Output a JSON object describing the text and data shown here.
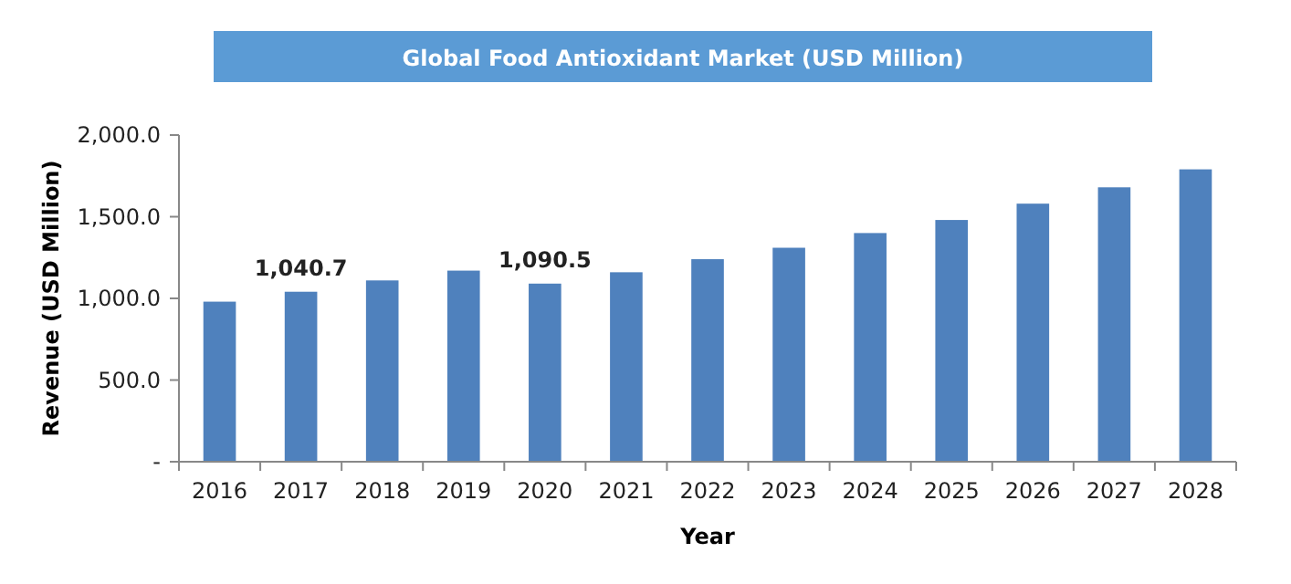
{
  "chart_data": {
    "type": "bar",
    "title": "Global Food Antioxidant Market (USD Million)",
    "xlabel": "Year",
    "ylabel": "Revenue (USD Million)",
    "categories": [
      "2016",
      "2017",
      "2018",
      "2019",
      "2020",
      "2021",
      "2022",
      "2023",
      "2024",
      "2025",
      "2026",
      "2027",
      "2028"
    ],
    "values": [
      980,
      1040.7,
      1110,
      1170,
      1090.5,
      1160,
      1240,
      1310,
      1400,
      1480,
      1580,
      1680,
      1790
    ],
    "value_labels": [
      null,
      "1,040.7",
      null,
      null,
      "1,090.5",
      null,
      null,
      null,
      null,
      null,
      null,
      null,
      null
    ],
    "color": "#4f81bd",
    "ylim": [
      0,
      2000
    ],
    "yticks": [
      {
        "value": 0,
        "label": "-"
      },
      {
        "value": 500,
        "label": "500.0"
      },
      {
        "value": 1000,
        "label": "1,000.0"
      },
      {
        "value": 1500,
        "label": "1,500.0"
      },
      {
        "value": 2000,
        "label": "2,000.0"
      }
    ],
    "grid": false
  }
}
